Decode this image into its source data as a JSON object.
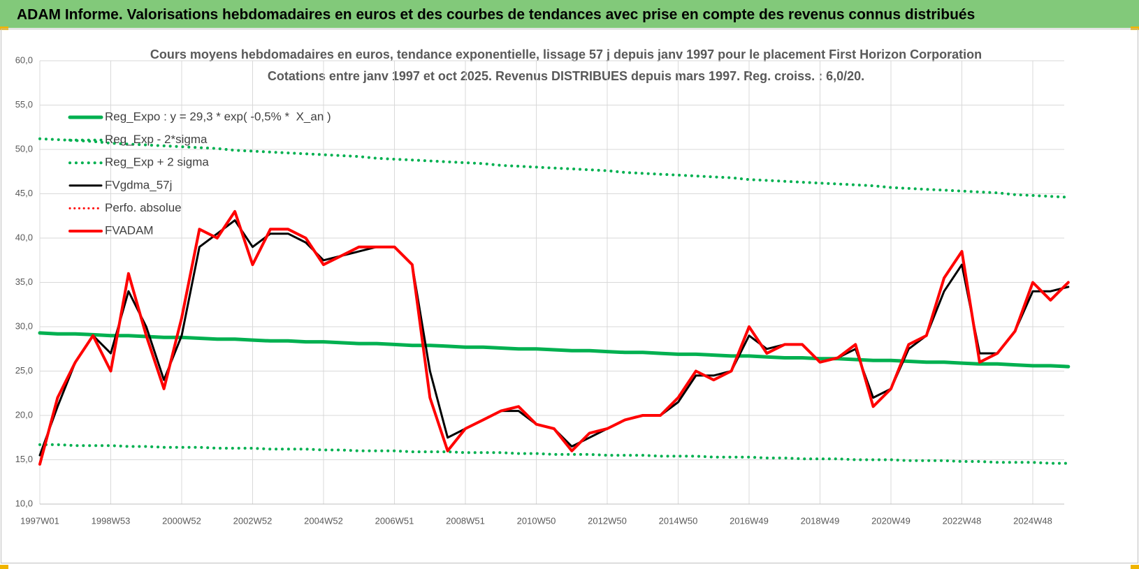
{
  "header": {
    "title": "ADAM Informe. Valorisations hebdomadaires en euros et des courbes de tendances avec prise en compte des revenus connus distribués"
  },
  "chart_data": {
    "type": "line",
    "title": "Cours moyens hebdomadaires en euros, tendance exponentielle, lissage 57 j depuis janv 1997 pour le placement First Horizon Corporation",
    "subtitle": "Cotations entre janv 1997 et oct 2025. Revenus DISTRIBUES depuis mars 1997. Reg. croiss. : 6,0/20.",
    "categories": [
      "1997W01",
      null,
      null,
      null,
      "1998W53",
      null,
      null,
      null,
      "2000W52",
      null,
      null,
      null,
      "2002W52",
      null,
      null,
      null,
      "2004W52",
      null,
      null,
      null,
      "2006W51",
      null,
      null,
      null,
      "2008W51",
      null,
      null,
      null,
      "2010W50",
      null,
      null,
      null,
      "2012W50",
      null,
      null,
      null,
      "2014W50",
      null,
      null,
      null,
      "2016W49",
      null,
      null,
      null,
      "2018W49",
      null,
      null,
      null,
      "2020W49",
      null,
      null,
      null,
      "2022W48",
      null,
      null,
      null,
      "2024W48",
      null,
      null
    ],
    "ylim": [
      10,
      60
    ],
    "yticks": [
      {
        "value": 10,
        "label": "10,0"
      },
      {
        "value": 15,
        "label": "15,0"
      },
      {
        "value": 20,
        "label": "20,0"
      },
      {
        "value": 25,
        "label": "25,0"
      },
      {
        "value": 30,
        "label": "30,0"
      },
      {
        "value": 35,
        "label": "35,0"
      },
      {
        "value": 40,
        "label": "40,0"
      },
      {
        "value": 45,
        "label": "45,0"
      },
      {
        "value": 50,
        "label": "50,0"
      },
      {
        "value": 55,
        "label": "55,0"
      },
      {
        "value": 60,
        "label": "60,0"
      }
    ],
    "grid": true,
    "legend": "top-left",
    "series": [
      {
        "name": "Reg_Expo : y = 29,3 * exp( -0,5% *  X_an )",
        "color": "#00b050",
        "style": "solid",
        "width": 5,
        "values": [
          29.3,
          29.2,
          29.2,
          29.1,
          29.0,
          29.0,
          28.9,
          28.8,
          28.8,
          28.7,
          28.6,
          28.6,
          28.5,
          28.4,
          28.4,
          28.3,
          28.3,
          28.2,
          28.1,
          28.1,
          28.0,
          27.9,
          27.9,
          27.8,
          27.7,
          27.7,
          27.6,
          27.5,
          27.5,
          27.4,
          27.3,
          27.3,
          27.2,
          27.1,
          27.1,
          27.0,
          26.9,
          26.9,
          26.8,
          26.7,
          26.7,
          26.6,
          26.5,
          26.5,
          26.4,
          26.4,
          26.3,
          26.2,
          26.2,
          26.1,
          26.0,
          26.0,
          25.9,
          25.8,
          25.8,
          25.7,
          25.6,
          25.6,
          25.5
        ]
      },
      {
        "name": "Reg_Exp - 2*sigma",
        "color": "#00b050",
        "style": "dotted",
        "width": 4,
        "values": [
          16.7,
          16.7,
          16.6,
          16.6,
          16.6,
          16.5,
          16.5,
          16.4,
          16.4,
          16.4,
          16.3,
          16.3,
          16.3,
          16.2,
          16.2,
          16.2,
          16.1,
          16.1,
          16.0,
          16.0,
          16.0,
          15.9,
          15.9,
          15.9,
          15.8,
          15.8,
          15.8,
          15.7,
          15.7,
          15.6,
          15.6,
          15.6,
          15.5,
          15.5,
          15.5,
          15.4,
          15.4,
          15.4,
          15.3,
          15.3,
          15.3,
          15.2,
          15.2,
          15.1,
          15.1,
          15.1,
          15.0,
          15.0,
          15.0,
          14.9,
          14.9,
          14.9,
          14.8,
          14.8,
          14.7,
          14.7,
          14.7,
          14.6,
          14.6
        ]
      },
      {
        "name": "Reg_Exp + 2 sigma",
        "color": "#00b050",
        "style": "dotted",
        "width": 4,
        "values": [
          51.2,
          51.1,
          51.0,
          50.9,
          50.7,
          50.6,
          50.5,
          50.4,
          50.3,
          50.2,
          50.1,
          49.9,
          49.8,
          49.7,
          49.6,
          49.5,
          49.4,
          49.3,
          49.2,
          49.0,
          48.9,
          48.8,
          48.7,
          48.6,
          48.5,
          48.4,
          48.2,
          48.1,
          48.0,
          47.9,
          47.8,
          47.7,
          47.6,
          47.4,
          47.3,
          47.2,
          47.1,
          47.0,
          46.9,
          46.8,
          46.6,
          46.5,
          46.4,
          46.3,
          46.2,
          46.1,
          46.0,
          45.9,
          45.7,
          45.6,
          45.5,
          45.4,
          45.3,
          45.2,
          45.1,
          44.9,
          44.8,
          44.7,
          44.6
        ]
      },
      {
        "name": "FVgdma_57j",
        "color": "#000000",
        "style": "solid",
        "width": 3,
        "values": [
          15.5,
          21,
          26,
          29,
          27,
          34,
          30,
          24,
          29,
          39,
          40.5,
          42,
          39,
          40.5,
          40.5,
          39.5,
          37.5,
          38,
          38.5,
          39,
          39,
          37,
          25,
          17.5,
          18.5,
          19.5,
          20.5,
          20.5,
          19,
          18.5,
          16.5,
          17.5,
          18.5,
          19.5,
          20,
          20,
          21.5,
          24.5,
          24.5,
          25,
          29,
          27.5,
          28,
          28,
          26,
          26.5,
          27.5,
          22,
          23,
          27.5,
          29,
          34,
          37,
          27,
          27,
          29.5,
          34,
          34,
          34.5
        ]
      },
      {
        "name": "Perfo. absolue",
        "color": "#ff0000",
        "style": "dotted",
        "width": 3,
        "values": [
          null,
          null,
          null,
          null,
          null,
          null,
          null,
          null,
          null,
          null,
          null,
          null,
          null,
          null,
          null,
          null,
          null,
          null,
          null,
          null,
          null,
          null,
          null,
          null,
          null,
          null,
          null,
          null,
          null,
          null,
          null,
          null,
          null,
          null,
          null,
          null,
          null,
          null,
          null,
          null,
          null,
          null,
          null,
          null,
          null,
          null,
          null,
          null,
          null,
          null,
          null,
          null,
          null,
          null,
          null,
          null,
          null,
          null,
          null
        ]
      },
      {
        "name": "FVADAM",
        "color": "#ff0000",
        "style": "solid",
        "width": 4,
        "values": [
          14.5,
          22,
          26,
          29,
          25,
          36,
          29,
          23,
          31,
          41,
          40,
          43,
          37,
          41,
          41,
          40,
          37,
          38,
          39,
          39,
          39,
          37,
          22,
          16,
          18.5,
          19.5,
          20.5,
          21,
          19,
          18.5,
          16,
          18,
          18.5,
          19.5,
          20,
          20,
          22,
          25,
          24,
          25,
          30,
          27,
          28,
          28,
          26,
          26.5,
          28,
          21,
          23,
          28,
          29,
          35.5,
          38.5,
          26,
          27,
          29.5,
          35,
          33,
          35
        ]
      }
    ]
  }
}
